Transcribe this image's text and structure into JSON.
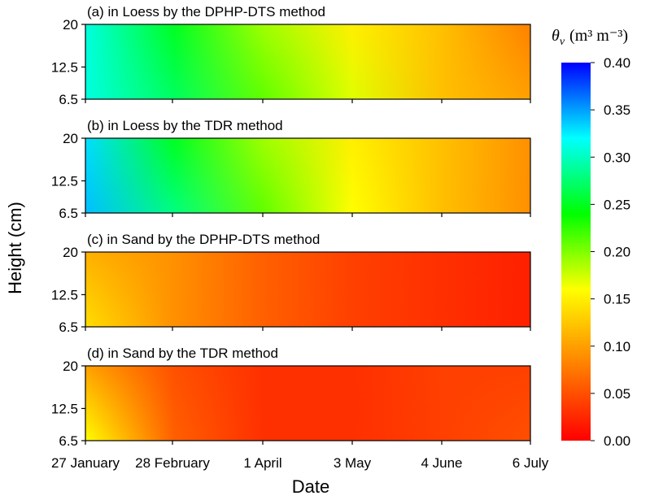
{
  "chart_data": {
    "type": "heatmap",
    "ylabel": "Height (cm)",
    "xlabel": "Date",
    "x_ticks": [
      "27 January",
      "28 February",
      "1 April",
      "3 May",
      "4 June",
      "6 July"
    ],
    "y_ticks": [
      "20",
      "12.5",
      "6.5"
    ],
    "colorbar": {
      "label": "θv (m³ m⁻³)",
      "label_symbol": "θ",
      "label_subscript": "v",
      "label_units": "(m³ m⁻³)",
      "ticks": [
        "0.40",
        "0.35",
        "0.30",
        "0.25",
        "0.20",
        "0.15",
        "0.10",
        "0.05",
        "0.00"
      ],
      "min": 0.0,
      "max": 0.4,
      "colormap": [
        "#ff0000",
        "#ff8000",
        "#ffff00",
        "#00ff00",
        "#00ffff",
        "#0000ff"
      ]
    },
    "panels": [
      {
        "title": "(a)  in Loess by the DPHP-DTS method",
        "x_dates": [
          "27 January",
          "28 February",
          "1 April",
          "3 May",
          "4 June",
          "6 July"
        ],
        "theta_top": [
          0.31,
          0.25,
          0.19,
          0.15,
          0.12,
          0.08
        ],
        "theta_bottom": [
          0.31,
          0.27,
          0.21,
          0.17,
          0.12,
          0.1
        ]
      },
      {
        "title": "(b)  in Loess by the TDR method",
        "x_dates": [
          "27 January",
          "28 February",
          "1 April",
          "3 May",
          "4 June",
          "6 July"
        ],
        "theta_top": [
          0.33,
          0.25,
          0.19,
          0.15,
          0.12,
          0.09
        ],
        "theta_bottom": [
          0.34,
          0.28,
          0.21,
          0.16,
          0.12,
          0.09
        ]
      },
      {
        "title": "(c)  in Sand by the DPHP-DTS method",
        "x_dates": [
          "27 January",
          "28 February",
          "1 April",
          "3 May",
          "4 June",
          "6 July"
        ],
        "theta_top": [
          0.11,
          0.09,
          0.06,
          0.04,
          0.03,
          0.02
        ],
        "theta_bottom": [
          0.14,
          0.09,
          0.06,
          0.04,
          0.03,
          0.02
        ]
      },
      {
        "title": "(d)  in Sand by the TDR method",
        "x_dates": [
          "27 January",
          "28 February",
          "1 April",
          "3 May",
          "4 June",
          "6 July"
        ],
        "theta_top": [
          0.1,
          0.05,
          0.03,
          0.03,
          0.04,
          0.04
        ],
        "theta_bottom": [
          0.16,
          0.06,
          0.03,
          0.03,
          0.04,
          0.05
        ]
      }
    ]
  }
}
